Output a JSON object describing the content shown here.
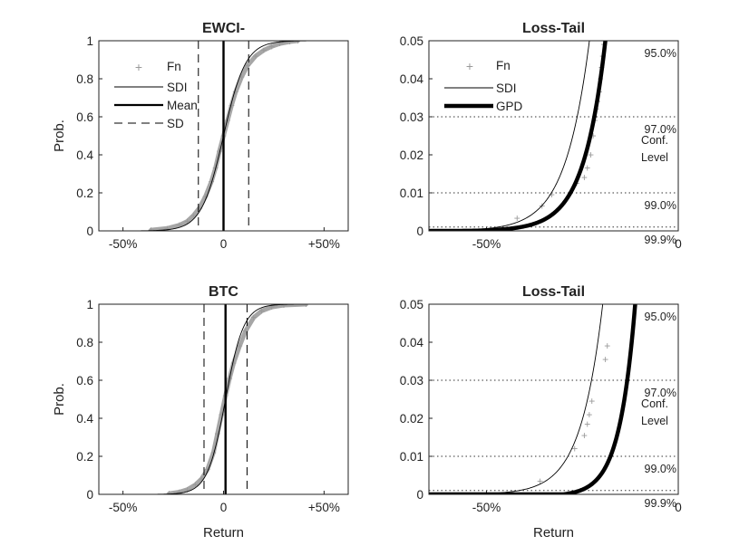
{
  "figure": {
    "x_label": "Return",
    "y_label": "Prob.",
    "colors": {
      "axis": "#222222",
      "line": "#000000",
      "marker": "#999999",
      "fill": "#a6a6a6",
      "grid": "#333333"
    }
  },
  "chart_data": [
    {
      "type": "line",
      "title": "EWCI-",
      "xlabel": "",
      "ylabel": "Prob.",
      "xlim": [
        -0.62,
        0.62
      ],
      "ylim": [
        0,
        1
      ],
      "x_ticks": [
        {
          "v": -0.5,
          "label": "-50%"
        },
        {
          "v": 0,
          "label": "0"
        },
        {
          "v": 0.5,
          "label": "+50%"
        }
      ],
      "y_ticks": [
        {
          "v": 0,
          "label": "0"
        },
        {
          "v": 0.2,
          "label": "0.2"
        },
        {
          "v": 0.4,
          "label": "0.4"
        },
        {
          "v": 0.6,
          "label": "0.6"
        },
        {
          "v": 0.8,
          "label": "0.8"
        },
        {
          "v": 1,
          "label": "1"
        }
      ],
      "legend": [
        "Fn",
        "SDI",
        "Mean",
        "SD"
      ],
      "legend_sub": "n",
      "mean": 0.0,
      "sd": 0.125,
      "sdi_scale": 0.055,
      "ecdf_points": [
        [
          -0.36,
          0.004
        ],
        [
          -0.28,
          0.013
        ],
        [
          -0.22,
          0.03
        ],
        [
          -0.18,
          0.05
        ],
        [
          -0.15,
          0.08
        ],
        [
          -0.12,
          0.12
        ],
        [
          -0.09,
          0.18
        ],
        [
          -0.06,
          0.26
        ],
        [
          -0.04,
          0.33
        ],
        [
          -0.02,
          0.42
        ],
        [
          0.0,
          0.5
        ],
        [
          0.02,
          0.58
        ],
        [
          0.04,
          0.66
        ],
        [
          0.06,
          0.73
        ],
        [
          0.09,
          0.81
        ],
        [
          0.12,
          0.87
        ],
        [
          0.16,
          0.92
        ],
        [
          0.2,
          0.95
        ],
        [
          0.24,
          0.97
        ],
        [
          0.28,
          0.985
        ],
        [
          0.33,
          0.995
        ],
        [
          0.37,
          1.0
        ]
      ]
    },
    {
      "type": "line",
      "title": "Loss-Tail",
      "xlabel": "",
      "ylabel": "",
      "xlim": [
        -0.65,
        0
      ],
      "ylim": [
        0,
        0.05
      ],
      "x_ticks": [
        {
          "v": -0.5,
          "label": "-50%"
        },
        {
          "v": 0,
          "label": "0"
        }
      ],
      "y_ticks": [
        {
          "v": 0,
          "label": "0"
        },
        {
          "v": 0.01,
          "label": "0.01"
        },
        {
          "v": 0.02,
          "label": "0.02"
        },
        {
          "v": 0.03,
          "label": "0.03"
        },
        {
          "v": 0.04,
          "label": "0.04"
        },
        {
          "v": 0.05,
          "label": "0.05"
        }
      ],
      "legend": [
        "Fn",
        "SDI",
        "GPD"
      ],
      "legend_sub": "n",
      "conf_levels": [
        {
          "p": 0.05,
          "label": "95.0%"
        },
        {
          "p": 0.03,
          "label": "97.0%"
        },
        {
          "p": 0.01,
          "label": "99.0%"
        },
        {
          "p": 0.001,
          "label": "99.9%"
        }
      ],
      "conf_title": [
        "Conf.",
        "Level"
      ],
      "sdi_params": {
        "m": -0.055,
        "s": 0.06
      },
      "gpd_params": {
        "u": -0.25,
        "pu": 0.017,
        "beta": 0.0565,
        "xi": 0.06
      },
      "tail_points": [
        [
          -0.42,
          0.0033
        ],
        [
          -0.355,
          0.0065
        ],
        [
          -0.33,
          0.0095
        ],
        [
          -0.265,
          0.0125
        ],
        [
          -0.245,
          0.014
        ],
        [
          -0.237,
          0.0165
        ],
        [
          -0.228,
          0.02
        ],
        [
          -0.222,
          0.025
        ],
        [
          -0.217,
          0.029
        ],
        [
          -0.214,
          0.032
        ],
        [
          -0.21,
          0.034
        ],
        [
          -0.206,
          0.0365
        ],
        [
          -0.203,
          0.04
        ],
        [
          -0.2,
          0.043
        ],
        [
          -0.197,
          0.046
        ],
        [
          -0.194,
          0.049
        ]
      ]
    },
    {
      "type": "line",
      "title": "BTC",
      "xlabel": "Return",
      "ylabel": "Prob.",
      "xlim": [
        -0.62,
        0.62
      ],
      "ylim": [
        0,
        1
      ],
      "x_ticks": [
        {
          "v": -0.5,
          "label": "-50%"
        },
        {
          "v": 0,
          "label": "0"
        },
        {
          "v": 0.5,
          "label": "+50%"
        }
      ],
      "y_ticks": [
        {
          "v": 0,
          "label": "0"
        },
        {
          "v": 0.2,
          "label": "0.2"
        },
        {
          "v": 0.4,
          "label": "0.4"
        },
        {
          "v": 0.6,
          "label": "0.6"
        },
        {
          "v": 0.8,
          "label": "0.8"
        },
        {
          "v": 1,
          "label": "1"
        }
      ],
      "mean": 0.01,
      "sd": 0.107,
      "sdi_scale": 0.045,
      "ecdf_points": [
        [
          -0.27,
          0.004
        ],
        [
          -0.22,
          0.012
        ],
        [
          -0.18,
          0.025
        ],
        [
          -0.14,
          0.05
        ],
        [
          -0.11,
          0.08
        ],
        [
          -0.08,
          0.13
        ],
        [
          -0.05,
          0.22
        ],
        [
          -0.03,
          0.32
        ],
        [
          -0.01,
          0.42
        ],
        [
          0.01,
          0.52
        ],
        [
          0.03,
          0.61
        ],
        [
          0.05,
          0.69
        ],
        [
          0.08,
          0.78
        ],
        [
          0.11,
          0.86
        ],
        [
          0.15,
          0.93
        ],
        [
          0.19,
          0.965
        ],
        [
          0.24,
          0.985
        ],
        [
          0.3,
          0.995
        ],
        [
          0.41,
          1.0
        ]
      ]
    },
    {
      "type": "line",
      "title": "Loss-Tail",
      "xlabel": "Return",
      "ylabel": "",
      "xlim": [
        -0.65,
        0
      ],
      "ylim": [
        0,
        0.05
      ],
      "x_ticks": [
        {
          "v": -0.5,
          "label": "-50%"
        },
        {
          "v": 0,
          "label": "0"
        }
      ],
      "y_ticks": [
        {
          "v": 0,
          "label": "0"
        },
        {
          "v": 0.01,
          "label": "0.01"
        },
        {
          "v": 0.02,
          "label": "0.02"
        },
        {
          "v": 0.03,
          "label": "0.03"
        },
        {
          "v": 0.04,
          "label": "0.04"
        },
        {
          "v": 0.05,
          "label": "0.05"
        }
      ],
      "conf_levels": [
        {
          "p": 0.05,
          "label": "95.0%"
        },
        {
          "p": 0.03,
          "label": "97.0%"
        },
        {
          "p": 0.01,
          "label": "99.0%"
        },
        {
          "p": 0.001,
          "label": "99.9%"
        }
      ],
      "conf_title": [
        "Conf.",
        "Level"
      ],
      "sdi_params": {
        "m": -0.035,
        "s": 0.055
      },
      "gpd_params": {
        "u": -0.3,
        "pu": 0.0,
        "beta": 0.041,
        "xi": 0.0,
        "mode": "cut",
        "c": 0.035
      },
      "tail_points": [
        [
          -0.36,
          0.0035
        ],
        [
          -0.27,
          0.012
        ],
        [
          -0.245,
          0.0155
        ],
        [
          -0.237,
          0.0185
        ],
        [
          -0.232,
          0.021
        ],
        [
          -0.225,
          0.0245
        ],
        [
          -0.19,
          0.0355
        ],
        [
          -0.185,
          0.039
        ]
      ]
    }
  ]
}
